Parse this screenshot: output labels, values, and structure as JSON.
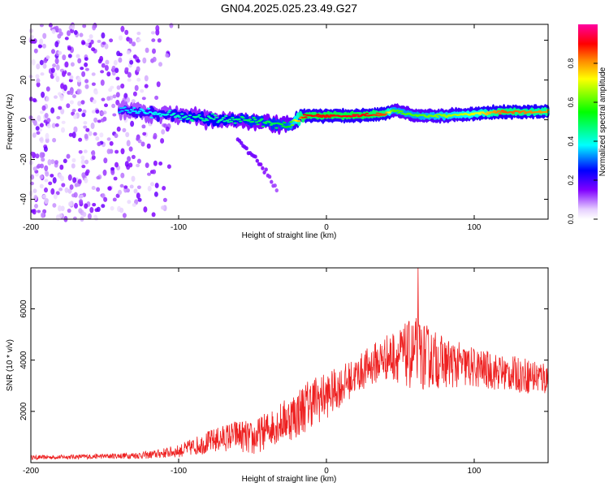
{
  "chart_data": [
    {
      "type": "heatmap",
      "title": "GN04.2025.025.23.49.G27",
      "xlabel": "Height of straight line (km)",
      "ylabel": "Frequency (Hz)",
      "xlim": [
        -200,
        150
      ],
      "ylim": [
        -50,
        48
      ],
      "x_ticks": [
        -200,
        -100,
        0,
        100
      ],
      "y_ticks": [
        -40,
        -20,
        0,
        20,
        40
      ],
      "colorbar": {
        "label": "Normalized spectral amplitude",
        "range": [
          0.0,
          1.0
        ],
        "ticks": [
          "0.0",
          "0.2",
          "0.4",
          "0.6",
          "0.8"
        ],
        "colors": [
          "#ffffff",
          "#e6d0ff",
          "#8000ff",
          "#0000ff",
          "#00ffff",
          "#00ff00",
          "#ffff00",
          "#ff8000",
          "#ff0000",
          "#ff00a0"
        ]
      },
      "ridge": {
        "description_points_x": [
          -140,
          -110,
          -90,
          -70,
          -50,
          -35,
          -25,
          -15,
          0,
          20,
          40,
          45,
          60,
          80,
          100,
          120,
          150
        ],
        "frequency_hz": [
          5,
          3,
          1,
          0,
          0,
          -2,
          -3,
          2,
          2,
          2,
          3,
          5,
          2,
          2,
          3,
          4,
          4
        ],
        "amplitude": [
          0.35,
          0.4,
          0.45,
          0.45,
          0.5,
          0.5,
          0.55,
          0.9,
          0.9,
          0.92,
          0.85,
          0.6,
          0.6,
          0.65,
          0.7,
          0.85,
          0.8
        ]
      },
      "branch": {
        "x": [
          -60,
          -50,
          -40,
          -33
        ],
        "frequency_hz": [
          -10,
          -18,
          -27,
          -36
        ],
        "amplitude": [
          0.3,
          0.3,
          0.25,
          0.2
        ]
      },
      "noise_region_x": [
        -200,
        -105
      ]
    },
    {
      "type": "line",
      "xlabel": "Height of straight line (km)",
      "ylabel": "SNR (10 * v/v)",
      "xlim": [
        -200,
        150
      ],
      "ylim": [
        0,
        7600
      ],
      "x_ticks": [
        -200,
        -100,
        0,
        100
      ],
      "y_ticks": [
        2000,
        4000,
        6000
      ],
      "line_color": "#ee2020",
      "envelope": {
        "x": [
          -200,
          -150,
          -120,
          -100,
          -80,
          -60,
          -50,
          -40,
          -30,
          -20,
          -10,
          0,
          20,
          30,
          40,
          50,
          60,
          70,
          80,
          100,
          120,
          150
        ],
        "mean": [
          200,
          250,
          300,
          450,
          800,
          1100,
          900,
          1300,
          1600,
          1900,
          2400,
          2600,
          3400,
          3800,
          4100,
          4200,
          4200,
          4100,
          3900,
          3700,
          3500,
          3300
        ],
        "spread": [
          80,
          100,
          150,
          250,
          450,
          600,
          700,
          700,
          800,
          1000,
          1000,
          900,
          700,
          800,
          900,
          1100,
          1500,
          1200,
          1000,
          800,
          700,
          700
        ]
      },
      "peak": {
        "x": 62,
        "y": 7600
      }
    }
  ]
}
